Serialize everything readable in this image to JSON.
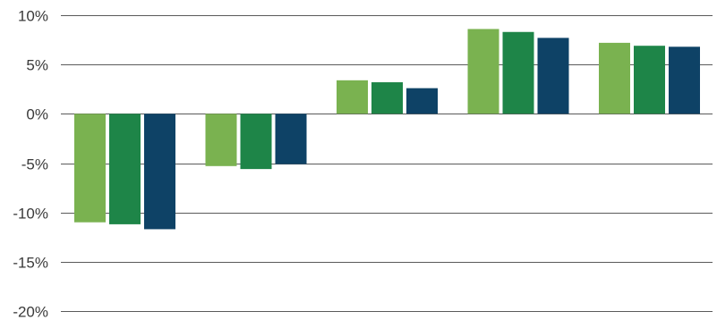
{
  "chart_data": {
    "type": "bar",
    "title": "",
    "xlabel": "",
    "ylabel": "",
    "categories": [
      "",
      "",
      "",
      "",
      ""
    ],
    "series": [
      {
        "color": "#7ab250",
        "values": [
          -11.0,
          -5.3,
          3.4,
          8.6,
          7.2
        ]
      },
      {
        "color": "#1e8548",
        "values": [
          -11.2,
          -5.6,
          3.2,
          8.3,
          6.9
        ]
      },
      {
        "color": "#0e4266",
        "values": [
          -11.7,
          -5.1,
          2.6,
          7.7,
          6.8
        ]
      }
    ],
    "ylim": [
      -20,
      10
    ],
    "y_ticks": [
      10,
      5,
      0,
      -5,
      -10,
      -15,
      -20
    ],
    "y_tick_labels": [
      "10%",
      "5%",
      "0%",
      "-5%",
      "-10%",
      "-15%",
      "-20%"
    ],
    "grid": true,
    "legend": "none"
  }
}
